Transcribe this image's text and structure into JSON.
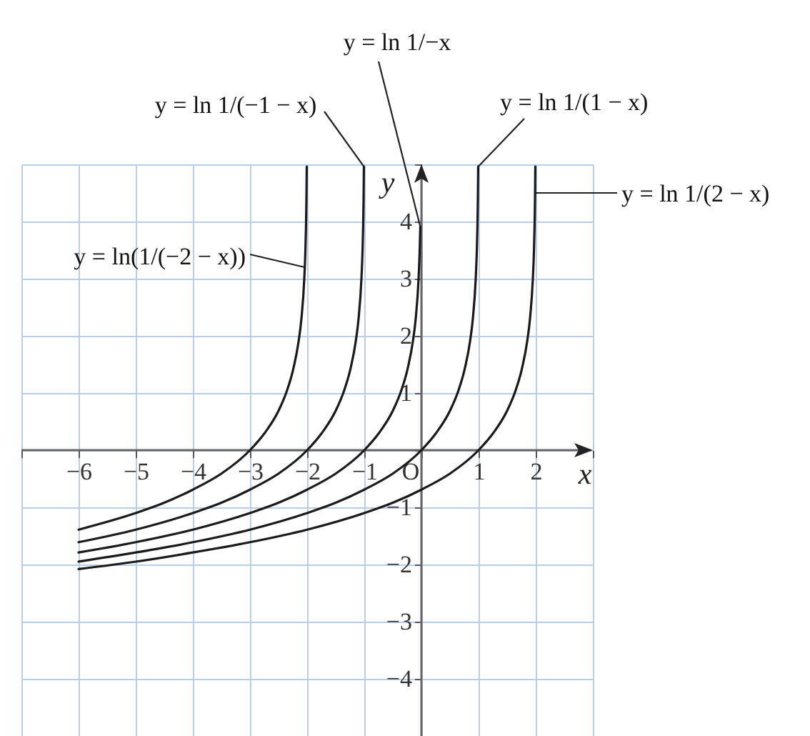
{
  "chart_data": {
    "type": "line",
    "xlabel": "x",
    "ylabel": "y",
    "xlim": [
      -7,
      3
    ],
    "ylim": [
      -5,
      5
    ],
    "xticks": [
      {
        "value": -7,
        "label": null
      },
      -6,
      -5,
      -4,
      -3,
      -2,
      -1,
      {
        "value": 0,
        "label": "O"
      },
      1,
      2,
      {
        "value": 3,
        "label": null
      }
    ],
    "yticks": [
      {
        "value": -5,
        "label": null
      },
      -4,
      -3,
      -2,
      -1,
      {
        "value": 0,
        "label": null
      },
      1,
      2,
      3,
      4,
      {
        "value": 5,
        "label": null
      }
    ],
    "grid": true,
    "series": [
      {
        "name": "y = ln(1/(−2 − x))",
        "color": "#1a1a1a",
        "x": [
          -6,
          -5,
          -4.5,
          -4,
          -3.5,
          -3,
          -2.75,
          -2.5,
          -2.35,
          -2.25,
          -2.15,
          -2.1,
          -2.05,
          -2.03,
          -2.02,
          -2.012,
          -2.007
        ],
        "values": [
          -1.39,
          -1.1,
          -0.92,
          -0.69,
          -0.41,
          0,
          0.29,
          0.69,
          1.05,
          1.39,
          1.9,
          2.3,
          3.0,
          3.51,
          3.91,
          4.42,
          4.96
        ]
      },
      {
        "name": "y = ln 1/(−1 − x)",
        "color": "#1a1a1a",
        "x": [
          -6,
          -5,
          -4,
          -3.5,
          -3,
          -2.5,
          -2,
          -1.75,
          -1.5,
          -1.35,
          -1.25,
          -1.15,
          -1.1,
          -1.05,
          -1.03,
          -1.02,
          -1.012,
          -1.007
        ],
        "values": [
          -1.61,
          -1.39,
          -1.1,
          -0.92,
          -0.69,
          -0.41,
          0,
          0.29,
          0.69,
          1.05,
          1.39,
          1.9,
          2.3,
          3.0,
          3.51,
          3.91,
          4.42,
          4.96
        ]
      },
      {
        "name": "y = ln 1/−x",
        "color": "#1a1a1a",
        "x": [
          -6,
          -5,
          -4,
          -3,
          -2.5,
          -2,
          -1.5,
          -1,
          -0.75,
          -0.5,
          -0.35,
          -0.25,
          -0.15,
          -0.1,
          -0.05,
          -0.03,
          -0.02
        ],
        "values": [
          -1.79,
          -1.61,
          -1.39,
          -1.1,
          -0.92,
          -0.69,
          -0.41,
          0,
          0.29,
          0.69,
          1.05,
          1.39,
          1.9,
          2.3,
          3.0,
          3.51,
          3.91
        ]
      },
      {
        "name": "y = ln 1/(1 − x)",
        "color": "#1a1a1a",
        "x": [
          -6,
          -5,
          -4,
          -3,
          -2,
          -1.5,
          -1,
          -0.5,
          0,
          0.25,
          0.5,
          0.65,
          0.75,
          0.85,
          0.9,
          0.95,
          0.97,
          0.98,
          0.988,
          0.993
        ],
        "values": [
          -1.95,
          -1.79,
          -1.61,
          -1.39,
          -1.1,
          -0.92,
          -0.69,
          -0.41,
          0,
          0.29,
          0.69,
          1.05,
          1.39,
          1.9,
          2.3,
          3.0,
          3.51,
          3.91,
          4.42,
          4.96
        ]
      },
      {
        "name": "y = ln 1/(2 − x)",
        "color": "#1a1a1a",
        "x": [
          -6,
          -5,
          -4,
          -3,
          -2,
          -1,
          -0.5,
          0,
          0.5,
          1,
          1.25,
          1.5,
          1.65,
          1.75,
          1.85,
          1.9,
          1.95,
          1.97,
          1.98,
          1.988,
          1.993
        ],
        "values": [
          -2.08,
          -1.95,
          -1.79,
          -1.61,
          -1.39,
          -1.1,
          -0.92,
          -0.69,
          -0.41,
          0,
          0.29,
          0.69,
          1.05,
          1.39,
          1.9,
          2.3,
          3.0,
          3.51,
          3.91,
          4.42,
          4.96
        ]
      }
    ]
  }
}
